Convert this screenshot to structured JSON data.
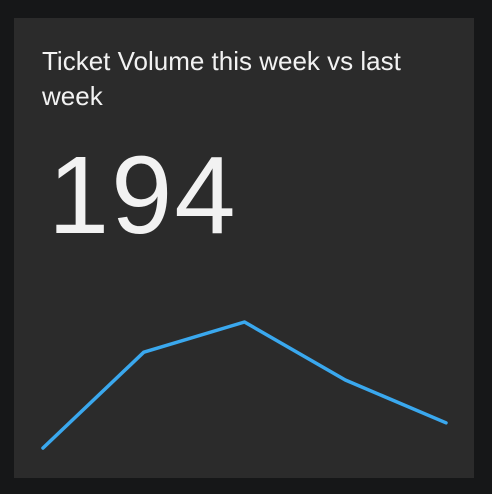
{
  "widget": {
    "title": "Ticket Volume this week vs last week",
    "value": "194",
    "line_color": "#3aa8ee"
  },
  "chart_data": {
    "type": "line",
    "x": [
      1,
      2,
      3,
      4,
      5
    ],
    "series": [
      {
        "values": [
          0,
          0.76,
          1.0,
          0.54,
          0.2
        ]
      }
    ],
    "grid": false,
    "legend": "none"
  }
}
